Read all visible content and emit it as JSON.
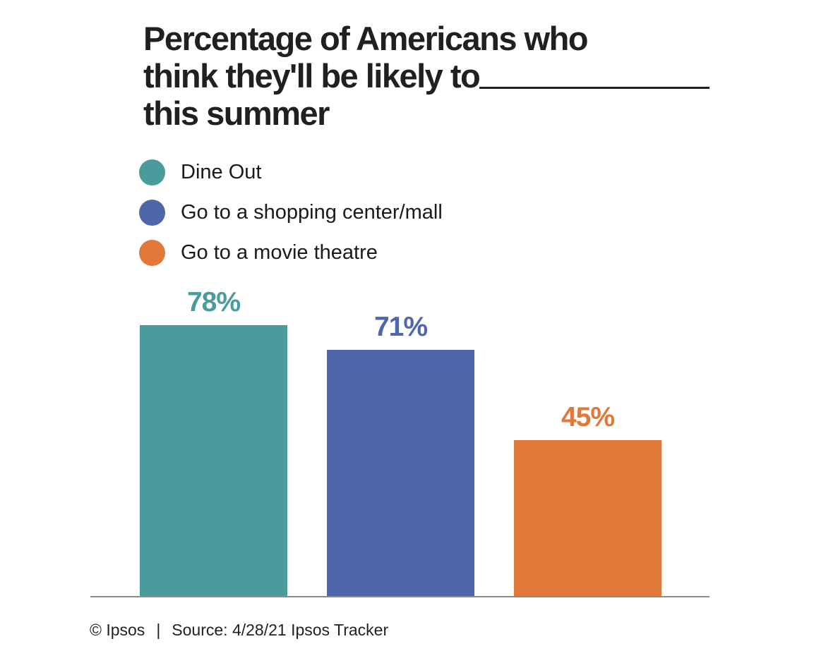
{
  "title": {
    "lines": [
      "Percentage of Americans who",
      "think they'll be likely to",
      "this summer"
    ],
    "blank": "________"
  },
  "legend": {
    "items": [
      {
        "label": "Dine Out",
        "color": "#4A9B9C"
      },
      {
        "label": "Go to a shopping center/mall",
        "color": "#4F66AB"
      },
      {
        "label": "Go to a movie theatre",
        "color": "#E0783A"
      }
    ]
  },
  "chart_data": {
    "type": "bar",
    "title": "Percentage of Americans who think they'll be likely to ________ this summer",
    "categories": [
      "Dine Out",
      "Go to a shopping center/mall",
      "Go to a movie theatre"
    ],
    "values": [
      78,
      71,
      45
    ],
    "value_labels": [
      "78%",
      "71%",
      "45%"
    ],
    "series_colors": [
      "#4A9B9C",
      "#4F66AB",
      "#E0783A"
    ],
    "xlabel": "",
    "ylabel": "",
    "ylim": [
      0,
      100
    ],
    "grid": false,
    "legend_position": "top-left",
    "axis_line_color": "#8C8C8C"
  },
  "footer": {
    "copyright": "© Ipsos",
    "separator": "|",
    "source": "Source: 4/28/21 Ipsos Tracker"
  }
}
